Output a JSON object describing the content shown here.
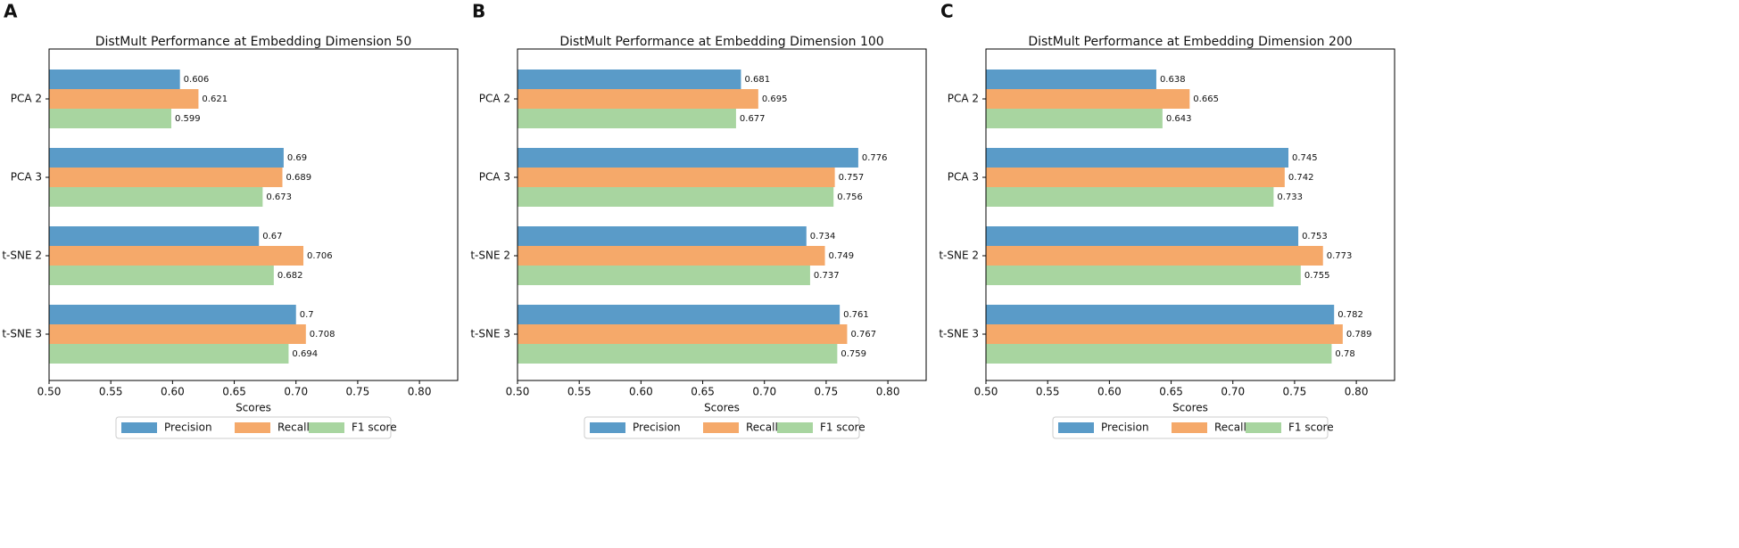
{
  "chart_data": [
    {
      "type": "barh",
      "panel": "A",
      "title": "DistMult Performance at Embedding Dimension 50",
      "xlabel": "Scores",
      "categories": [
        "PCA 2",
        "PCA 3",
        "t-SNE 2",
        "t-SNE 3"
      ],
      "series": [
        {
          "name": "Precision",
          "color": "#5a9bc8",
          "values": [
            0.606,
            0.69,
            0.67,
            0.7
          ]
        },
        {
          "name": "Recall",
          "color": "#f5a96a",
          "values": [
            0.621,
            0.689,
            0.706,
            0.708
          ]
        },
        {
          "name": "F1 score",
          "color": "#a8d5a0",
          "values": [
            0.599,
            0.673,
            0.682,
            0.694
          ]
        }
      ],
      "xlim": [
        0.5,
        0.831
      ],
      "xticks": [
        {
          "value": 0.5,
          "label": "0.50"
        },
        0.55,
        {
          "value": 0.6,
          "label": "0.60"
        },
        0.65,
        {
          "value": 0.7,
          "label": "0.70"
        },
        0.75,
        {
          "value": 0.8,
          "label": "0.80"
        }
      ],
      "legend": "bottom"
    },
    {
      "type": "barh",
      "panel": "B",
      "title": "DistMult Performance at Embedding Dimension 100",
      "xlabel": "Scores",
      "categories": [
        "PCA 2",
        "PCA 3",
        "t-SNE 2",
        "t-SNE 3"
      ],
      "series": [
        {
          "name": "Precision",
          "color": "#5a9bc8",
          "values": [
            0.681,
            0.776,
            0.734,
            0.761
          ]
        },
        {
          "name": "Recall",
          "color": "#f5a96a",
          "values": [
            0.695,
            0.757,
            0.749,
            0.767
          ]
        },
        {
          "name": "F1 score",
          "color": "#a8d5a0",
          "values": [
            0.677,
            0.756,
            0.737,
            0.759
          ]
        }
      ],
      "xlim": [
        0.5,
        0.831
      ],
      "xticks": [
        {
          "value": 0.5,
          "label": "0.50"
        },
        0.55,
        {
          "value": 0.6,
          "label": "0.60"
        },
        0.65,
        {
          "value": 0.7,
          "label": "0.70"
        },
        0.75,
        {
          "value": 0.8,
          "label": "0.80"
        }
      ],
      "legend": "bottom"
    },
    {
      "type": "barh",
      "panel": "C",
      "title": "DistMult Performance at Embedding Dimension 200",
      "xlabel": "Scores",
      "categories": [
        "PCA 2",
        "PCA 3",
        "t-SNE 2",
        "t-SNE 3"
      ],
      "series": [
        {
          "name": "Precision",
          "color": "#5a9bc8",
          "values": [
            0.638,
            0.745,
            0.753,
            0.782
          ]
        },
        {
          "name": "Recall",
          "color": "#f5a96a",
          "values": [
            0.665,
            0.742,
            0.773,
            0.789
          ]
        },
        {
          "name": "F1 score",
          "color": "#a8d5a0",
          "values": [
            0.643,
            0.733,
            0.755,
            0.78
          ]
        }
      ],
      "xlim": [
        0.5,
        0.831
      ],
      "xticks": [
        {
          "value": 0.5,
          "label": "0.50"
        },
        0.55,
        {
          "value": 0.6,
          "label": "0.60"
        },
        0.65,
        {
          "value": 0.7,
          "label": "0.70"
        },
        0.75,
        {
          "value": 0.8,
          "label": "0.80"
        }
      ],
      "legend": "bottom"
    }
  ]
}
